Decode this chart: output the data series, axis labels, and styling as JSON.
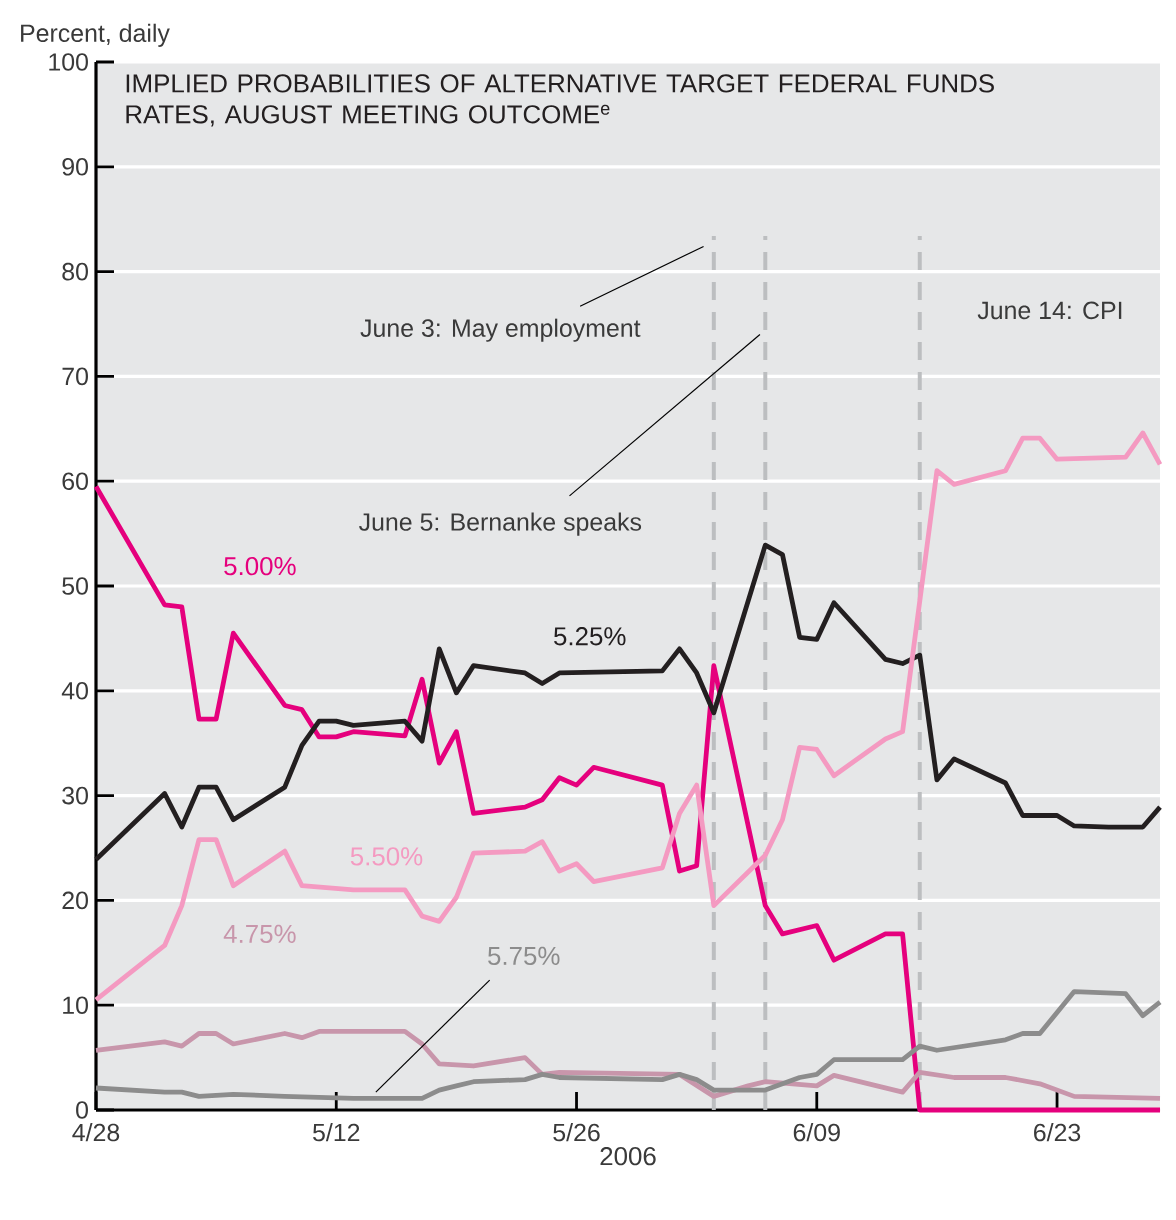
{
  "chart_data": {
    "type": "line",
    "title": "IMPLIED PROBABILITIES OF ALTERNATIVE TARGET FEDERAL FUNDS RATES, AUGUST MEETING OUTCOME$^{e}$",
    "ylabel": "Percent, daily",
    "xlabel": "2006",
    "xlim": [
      "2006-04-28",
      "2006-06-29"
    ],
    "xticks": [
      {
        "value": "2006-04-28",
        "label": "4/28"
      },
      {
        "value": "2006-05-12",
        "label": "5/12"
      },
      {
        "value": "2006-05-26",
        "label": "5/26"
      },
      {
        "value": "2006-06-09",
        "label": "6/09"
      },
      {
        "value": "2006-06-23",
        "label": "6/23"
      }
    ],
    "ylim": [
      0,
      100
    ],
    "yticks": [
      0,
      10,
      20,
      30,
      40,
      50,
      60,
      70,
      80,
      90,
      100
    ],
    "grid": "y",
    "legend": false,
    "marker": "none",
    "line_style": "solid",
    "series": [
      {
        "name": "5.00%",
        "color": "#e5007d",
        "x": [
          "2006-04-28",
          "2006-05-02",
          "2006-05-03",
          "2006-05-04",
          "2006-05-05",
          "2006-05-06",
          "2006-05-09",
          "2006-05-10",
          "2006-05-11",
          "2006-05-12",
          "2006-05-13",
          "2006-05-16",
          "2006-05-17",
          "2006-05-18",
          "2006-05-19",
          "2006-05-20",
          "2006-05-23",
          "2006-05-24",
          "2006-05-25",
          "2006-05-26",
          "2006-05-27",
          "2006-05-31",
          "2006-06-01",
          "2006-06-02",
          "2006-06-03",
          "2006-06-06",
          "2006-06-07",
          "2006-06-09",
          "2006-06-10",
          "2006-06-13",
          "2006-06-14",
          "2006-06-15",
          "2006-06-29"
        ],
        "values": [
          59.5,
          48.2,
          48,
          37.3,
          37.3,
          45.5,
          38.6,
          38.2,
          35.6,
          35.6,
          36.1,
          35.7,
          41.1,
          33.1,
          36.1,
          28.3,
          28.9,
          29.6,
          31.7,
          31.0,
          32.7,
          31.0,
          22.8,
          23.3,
          42.4,
          19.5,
          16.8,
          17.6,
          14.3,
          16.8,
          16.8,
          0,
          0
        ]
      },
      {
        "name": "5.25%",
        "color": "#231f20",
        "x": [
          "2006-04-28",
          "2006-05-02",
          "2006-05-03",
          "2006-05-04",
          "2006-05-05",
          "2006-05-06",
          "2006-05-09",
          "2006-05-10",
          "2006-05-11",
          "2006-05-12",
          "2006-05-13",
          "2006-05-16",
          "2006-05-17",
          "2006-05-18",
          "2006-05-19",
          "2006-05-20",
          "2006-05-23",
          "2006-05-24",
          "2006-05-25",
          "2006-05-31",
          "2006-06-01",
          "2006-06-02",
          "2006-06-03",
          "2006-06-06",
          "2006-06-07",
          "2006-06-08",
          "2006-06-09",
          "2006-06-10",
          "2006-06-13",
          "2006-06-14",
          "2006-06-15",
          "2006-06-16",
          "2006-06-17",
          "2006-06-20",
          "2006-06-21",
          "2006-06-23",
          "2006-06-24",
          "2006-06-26",
          "2006-06-28",
          "2006-06-29"
        ],
        "values": [
          23.9,
          30.2,
          27.0,
          30.8,
          30.8,
          27.7,
          30.8,
          34.8,
          37.1,
          37.1,
          36.7,
          37.1,
          35.2,
          44.0,
          39.8,
          42.4,
          41.7,
          40.7,
          41.7,
          41.9,
          44.0,
          41.7,
          37.9,
          53.9,
          53.0,
          45.1,
          44.9,
          48.4,
          43.0,
          42.6,
          43.4,
          31.5,
          33.5,
          31.2,
          28.1,
          28.1,
          27.1,
          27.0,
          27.0,
          28.9
        ]
      },
      {
        "name": "5.50%",
        "color": "#f49ac1",
        "x": [
          "2006-04-28",
          "2006-05-02",
          "2006-05-03",
          "2006-05-04",
          "2006-05-05",
          "2006-05-06",
          "2006-05-09",
          "2006-05-10",
          "2006-05-13",
          "2006-05-16",
          "2006-05-17",
          "2006-05-18",
          "2006-05-19",
          "2006-05-20",
          "2006-05-23",
          "2006-05-24",
          "2006-05-25",
          "2006-05-26",
          "2006-05-27",
          "2006-05-31",
          "2006-06-01",
          "2006-06-02",
          "2006-06-03",
          "2006-06-06",
          "2006-06-07",
          "2006-06-08",
          "2006-06-09",
          "2006-06-10",
          "2006-06-13",
          "2006-06-14",
          "2006-06-16",
          "2006-06-17",
          "2006-06-20",
          "2006-06-21",
          "2006-06-22",
          "2006-06-23",
          "2006-06-27",
          "2006-06-28",
          "2006-06-29"
        ],
        "values": [
          10.5,
          15.7,
          19.5,
          25.8,
          25.8,
          21.4,
          24.7,
          21.4,
          21.0,
          21.0,
          18.5,
          18.0,
          20.3,
          24.5,
          24.7,
          25.6,
          22.8,
          23.5,
          21.8,
          23.1,
          28.3,
          31.0,
          19.5,
          24.3,
          27.7,
          34.6,
          34.4,
          31.9,
          35.4,
          36.1,
          61.0,
          59.7,
          61.0,
          64.1,
          64.1,
          62.1,
          62.3,
          64.6,
          61.6
        ]
      },
      {
        "name": "4.75%",
        "color": "#c896ab",
        "x": [
          "2006-04-28",
          "2006-05-02",
          "2006-05-03",
          "2006-05-04",
          "2006-05-05",
          "2006-05-06",
          "2006-05-09",
          "2006-05-10",
          "2006-05-11",
          "2006-05-16",
          "2006-05-17",
          "2006-05-18",
          "2006-05-20",
          "2006-05-23",
          "2006-05-24",
          "2006-05-25",
          "2006-06-01",
          "2006-06-03",
          "2006-06-05",
          "2006-06-06",
          "2006-06-09",
          "2006-06-10",
          "2006-06-14",
          "2006-06-15",
          "2006-06-17",
          "2006-06-20",
          "2006-06-22",
          "2006-06-24",
          "2006-06-29"
        ],
        "values": [
          5.7,
          6.5,
          6.1,
          7.3,
          7.3,
          6.3,
          7.3,
          6.9,
          7.5,
          7.5,
          6.3,
          4.4,
          4.2,
          5.0,
          3.4,
          3.6,
          3.4,
          1.3,
          2.3,
          2.7,
          2.3,
          3.3,
          1.7,
          3.6,
          3.1,
          3.1,
          2.5,
          1.3,
          1.1
        ]
      },
      {
        "name": "5.75%",
        "color": "#8c8c8c",
        "x": [
          "2006-04-28",
          "2006-05-02",
          "2006-05-03",
          "2006-05-04",
          "2006-05-06",
          "2006-05-09",
          "2006-05-13",
          "2006-05-17",
          "2006-05-18",
          "2006-05-19",
          "2006-05-20",
          "2006-05-23",
          "2006-05-24",
          "2006-05-25",
          "2006-05-31",
          "2006-06-01",
          "2006-06-02",
          "2006-06-03",
          "2006-06-06",
          "2006-06-08",
          "2006-06-09",
          "2006-06-10",
          "2006-06-14",
          "2006-06-15",
          "2006-06-16",
          "2006-06-20",
          "2006-06-21",
          "2006-06-22",
          "2006-06-24",
          "2006-06-27",
          "2006-06-28",
          "2006-06-29"
        ],
        "values": [
          2.1,
          1.7,
          1.7,
          1.3,
          1.5,
          1.3,
          1.1,
          1.1,
          1.9,
          2.3,
          2.7,
          2.9,
          3.4,
          3.1,
          2.9,
          3.4,
          2.9,
          1.9,
          1.9,
          3.1,
          3.4,
          4.8,
          4.8,
          6.1,
          5.7,
          6.7,
          7.3,
          7.3,
          11.3,
          11.1,
          9.0,
          10.3
        ]
      }
    ],
    "ref_lines": [
      {
        "axis": "x",
        "value": "2006-06-03",
        "label": "June 3: May employment",
        "color": "#bcbec0",
        "line_style": "dashed"
      },
      {
        "axis": "x",
        "value": "2006-06-06",
        "label": "June 5: Bernanke speaks",
        "color": "#bcbec0",
        "line_style": "dashed"
      },
      {
        "axis": "x",
        "value": "2006-06-15",
        "label": "June 14: CPI",
        "color": "#bcbec0",
        "line_style": "dashed"
      }
    ]
  }
}
